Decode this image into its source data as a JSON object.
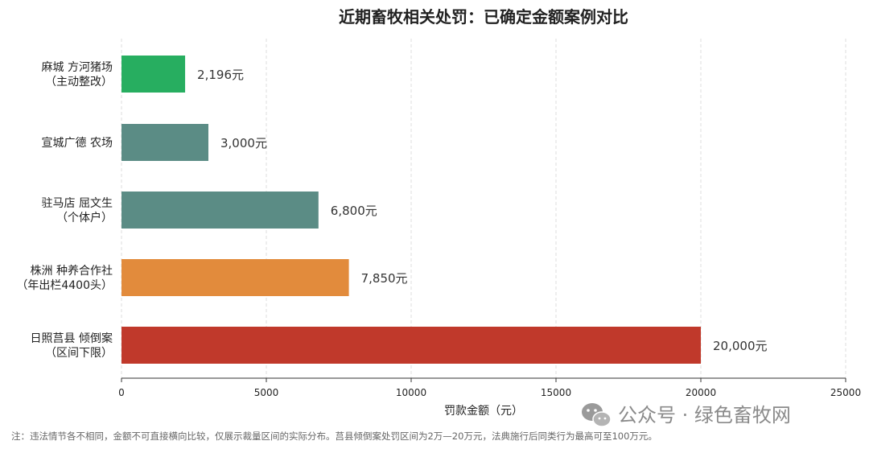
{
  "chart_data": {
    "type": "bar",
    "orientation": "horizontal",
    "title": "近期畜牧相关处罚：已确定金额案例对比",
    "xlabel": "罚款金额（元）",
    "ylabel": "",
    "xlim": [
      0,
      25000
    ],
    "xticks": [
      0,
      5000,
      10000,
      15000,
      20000,
      25000
    ],
    "grid": "vertical dashed",
    "categories": [
      [
        "麻城 方河猪场",
        "（主动整改）"
      ],
      [
        "宣城广德 农场"
      ],
      [
        "驻马店 屈文生",
        "（个体户）"
      ],
      [
        "株洲 种养合作社",
        "（年出栏4400头）"
      ],
      [
        "日照莒县 倾倒案",
        "（区间下限）"
      ]
    ],
    "values": [
      2196,
      3000,
      6800,
      7850,
      20000
    ],
    "value_labels": [
      "2,196元",
      "3,000元",
      "6,800元",
      "7,850元",
      "20,000元"
    ],
    "colors": [
      "#27ae60",
      "#5b8c85",
      "#5b8c85",
      "#e28b3c",
      "#c0392b"
    ]
  },
  "footnote": "注：违法情节各不相同，金额不可直接横向比较，仅展示裁量区间的实际分布。莒县倾倒案处罚区间为2万—20万元，法典施行后同类行为最高可至100万元。",
  "watermark": {
    "text": "公众号 · 绿色畜牧网",
    "icon": "wechat-icon"
  }
}
